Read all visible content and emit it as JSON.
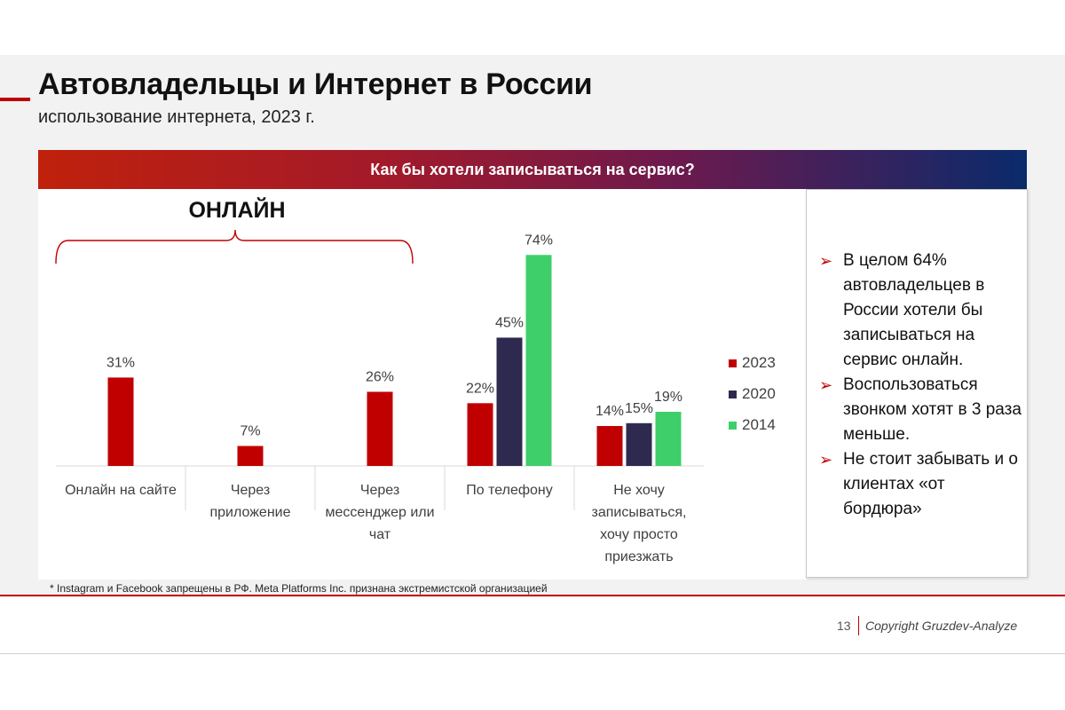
{
  "header": {
    "title": "Автовладельцы и Интернет в России",
    "subtitle": "использование интернета, 2023 г."
  },
  "banner": {
    "text": "Как бы хотели записываться на сервис?"
  },
  "chart_annotation": {
    "online_label": "ОНЛАЙН"
  },
  "chart_data": {
    "type": "bar",
    "categories": [
      [
        "Онлайн на сайте"
      ],
      [
        "Через",
        "приложение"
      ],
      [
        "Через",
        "мессенджер или",
        "чат"
      ],
      [
        "По телефону"
      ],
      [
        "Не хочу",
        "записываться,",
        "хочу просто",
        "приезжать"
      ]
    ],
    "series": [
      {
        "name": "2023",
        "color": "#c00000",
        "values": [
          31,
          7,
          26,
          22,
          14
        ]
      },
      {
        "name": "2020",
        "color": "#2e2a4f",
        "values": [
          null,
          null,
          null,
          45,
          15
        ]
      },
      {
        "name": "2014",
        "color": "#3ecf6a",
        "values": [
          null,
          null,
          null,
          74,
          19
        ]
      }
    ],
    "value_suffix": "%",
    "ylim": [
      0,
      80
    ],
    "legend_position": "right",
    "grid": false
  },
  "side_panel": {
    "bullets": [
      "В целом 64% автовладельцев в России хотели бы записываться на сервис онлайн.",
      "Воспользоваться звонком хотят в 3 раза меньше.",
      "Не стоит забывать и о клиентах «от бордюра»"
    ]
  },
  "footnote": "* Instagram и Facebook запрещены в РФ. Meta Platforms Inc. признана экстремистской организацией",
  "footer": {
    "page_number": "13",
    "copyright": "Copyright Gruzdev-Analyze"
  }
}
